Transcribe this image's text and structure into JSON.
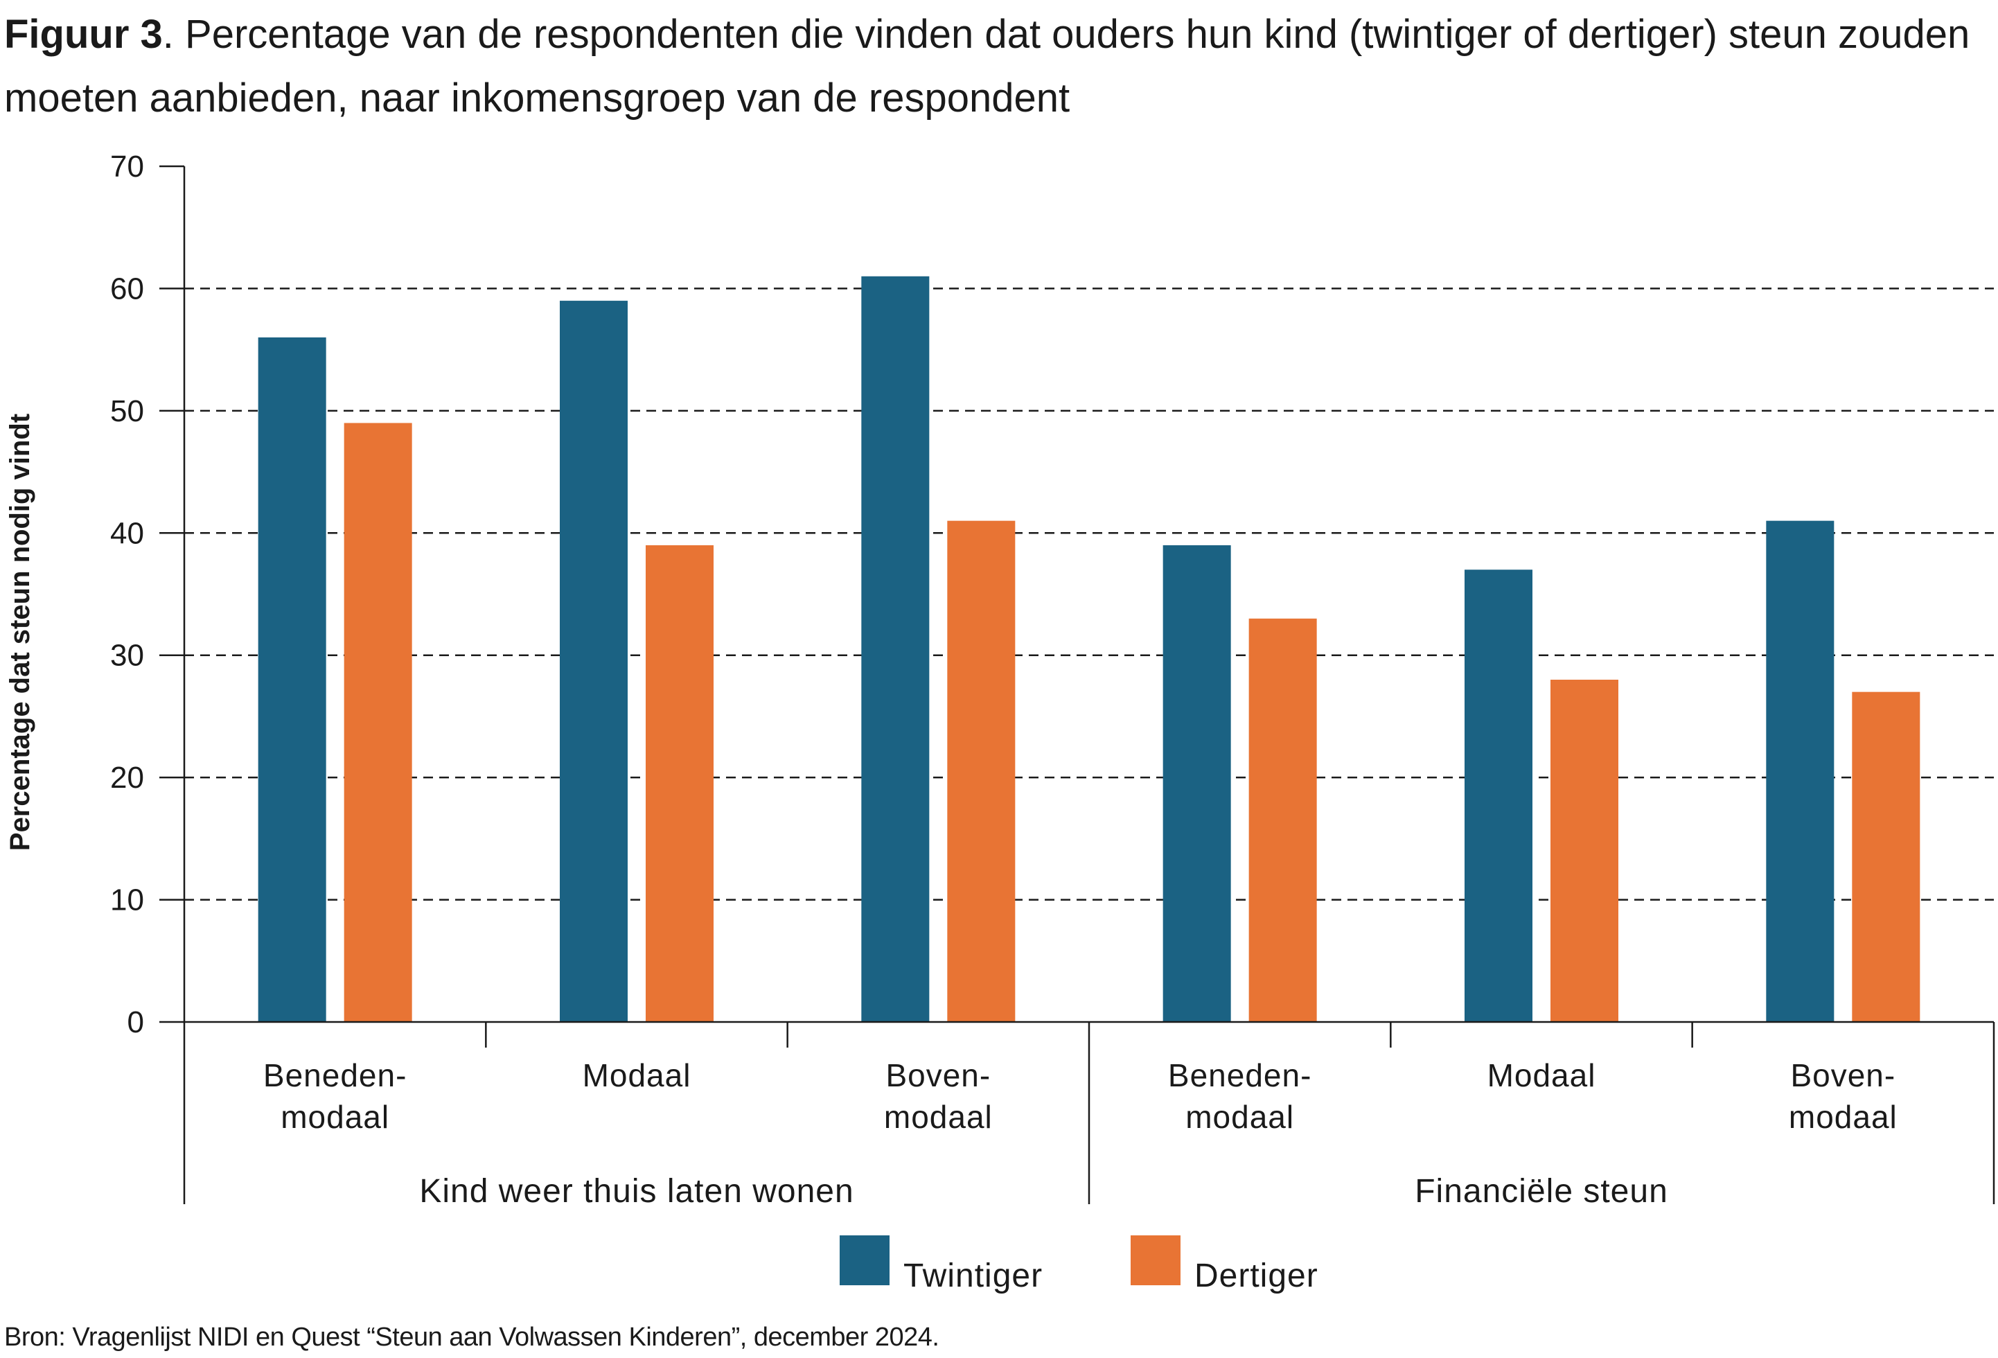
{
  "figure": {
    "label": "Figuur 3",
    "caption": ". Percentage van de respondenten die vinden dat ouders hun kind (twintiger of dertiger) steun zouden moeten aanbieden, naar inkomensgroep van de respondent"
  },
  "source": "Bron: Vragenlijst NIDI en Quest “Steun aan Volwassen Kinderen”, december 2024.",
  "chart_data": {
    "type": "bar",
    "title": "Percentage van de respondenten die vinden dat ouders hun kind (twintiger of dertiger) steun zouden moeten aanbieden, naar inkomensgroep van de respondent",
    "ylabel": "Percentage dat steun nodig vindt",
    "xlabel": "",
    "ylim": [
      0,
      70
    ],
    "yticks": [
      0,
      10,
      20,
      30,
      40,
      50,
      60,
      70
    ],
    "grid": "dashed horizontal",
    "legend_position": "bottom",
    "groups": [
      {
        "name": "Kind weer thuis laten wonen",
        "categories": [
          [
            "Beneden-",
            "modaal"
          ],
          [
            "Modaal"
          ],
          [
            "Boven-",
            "modaal"
          ]
        ]
      },
      {
        "name": "Financiële steun",
        "categories": [
          [
            "Beneden-",
            "modaal"
          ],
          [
            "Modaal"
          ],
          [
            "Boven-",
            "modaal"
          ]
        ]
      }
    ],
    "categories": [
      "Benedenmodaal",
      "Modaal",
      "Bovenmodaal",
      "Benedenmodaal",
      "Modaal",
      "Bovenmodaal"
    ],
    "series": [
      {
        "name": "Twintiger",
        "color": "#1b6283",
        "values": [
          56,
          59,
          61,
          39,
          37,
          41
        ]
      },
      {
        "name": "Dertiger",
        "color": "#e87434",
        "values": [
          49,
          39,
          41,
          33,
          28,
          27
        ]
      }
    ]
  }
}
